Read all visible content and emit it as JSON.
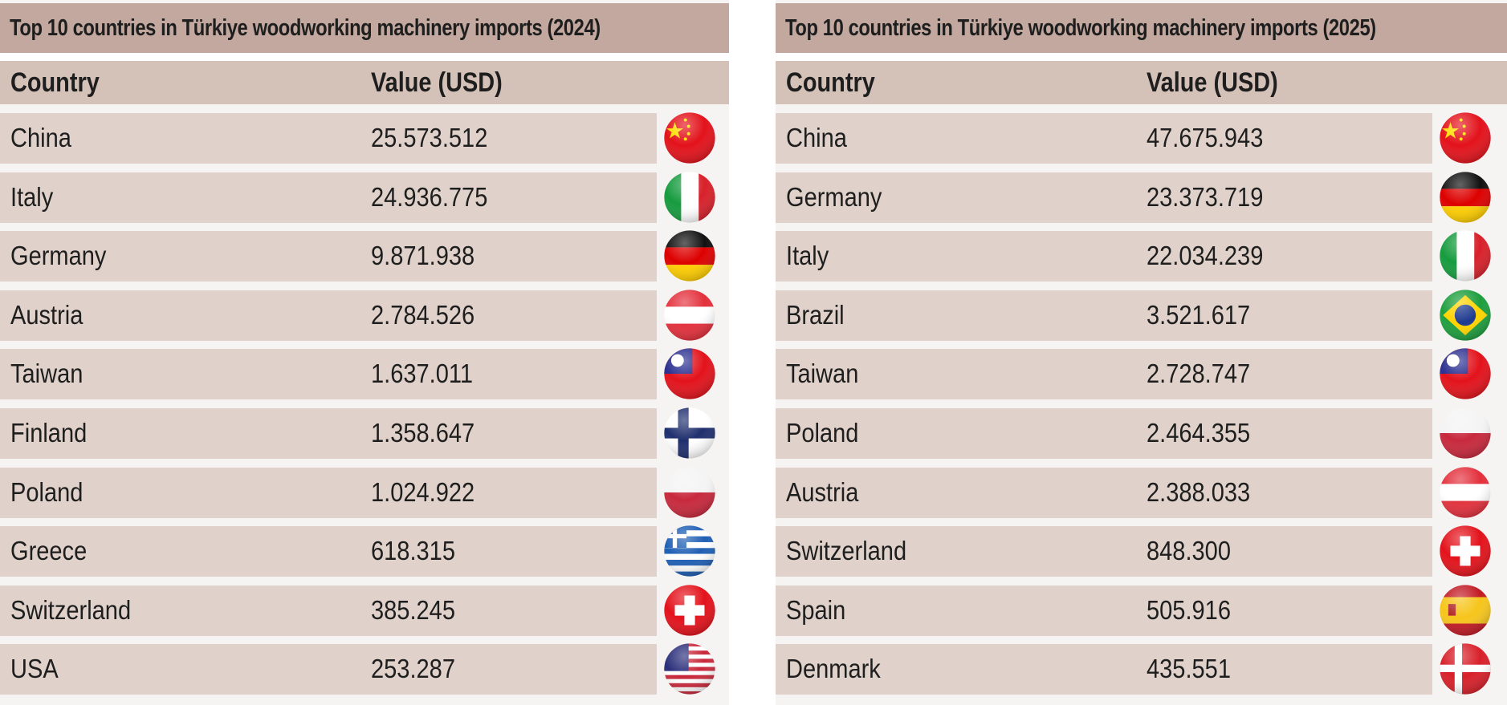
{
  "tables": [
    {
      "title": "Top 10 countries in Türkiye woodworking machinery imports  (2024)",
      "headers": [
        "Country",
        "Value (USD)"
      ],
      "rows": [
        {
          "country": "China",
          "value": "25.573.512",
          "flag": "china"
        },
        {
          "country": "Italy",
          "value": "24.936.775",
          "flag": "italy"
        },
        {
          "country": "Germany",
          "value": "9.871.938",
          "flag": "germany"
        },
        {
          "country": "Austria",
          "value": "2.784.526",
          "flag": "austria"
        },
        {
          "country": "Taiwan",
          "value": "1.637.011",
          "flag": "taiwan"
        },
        {
          "country": "Finland",
          "value": "1.358.647",
          "flag": "finland"
        },
        {
          "country": "Poland",
          "value": "1.024.922",
          "flag": "poland"
        },
        {
          "country": "Greece",
          "value": "618.315",
          "flag": "greece"
        },
        {
          "country": "Switzerland",
          "value": "385.245",
          "flag": "switzerland"
        },
        {
          "country": "USA",
          "value": "253.287",
          "flag": "usa"
        }
      ]
    },
    {
      "title": "Top 10 countries in Türkiye woodworking machinery imports  (2025)",
      "headers": [
        "Country",
        "Value (USD)"
      ],
      "rows": [
        {
          "country": "China",
          "value": "47.675.943",
          "flag": "china"
        },
        {
          "country": "Germany",
          "value": "23.373.719",
          "flag": "germany"
        },
        {
          "country": "Italy",
          "value": "22.034.239",
          "flag": "italy"
        },
        {
          "country": "Brazil",
          "value": "3.521.617",
          "flag": "brazil"
        },
        {
          "country": "Taiwan",
          "value": "2.728.747",
          "flag": "taiwan"
        },
        {
          "country": "Poland",
          "value": "2.464.355",
          "flag": "poland"
        },
        {
          "country": "Austria",
          "value": "2.388.033",
          "flag": "austria"
        },
        {
          "country": "Switzerland",
          "value": "848.300",
          "flag": "switzerland"
        },
        {
          "country": "Spain",
          "value": "505.916",
          "flag": "spain"
        },
        {
          "country": "Denmark",
          "value": "435.551",
          "flag": "denmark"
        }
      ]
    }
  ],
  "colors": {
    "title_bg": "#c2a89e",
    "header_bg": "#d4c1b8",
    "row_bg": "#e0d2ca",
    "panel_bg": "#f6f4f2"
  }
}
